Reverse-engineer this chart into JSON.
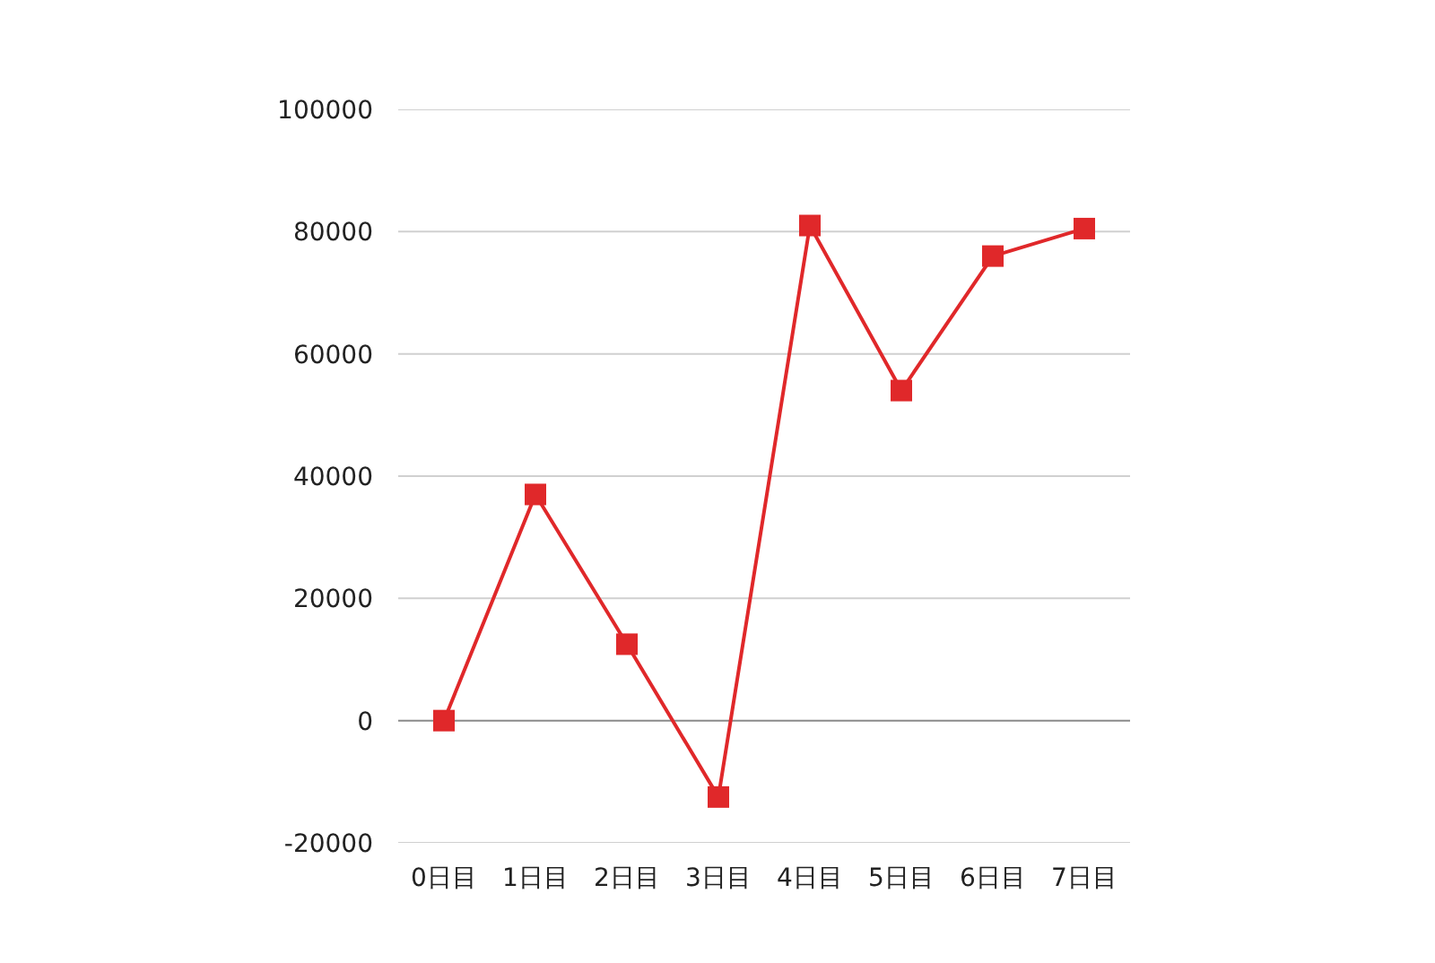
{
  "chart_data": {
    "type": "line",
    "categories": [
      "0日目",
      "1日目",
      "2日目",
      "3日目",
      "4日目",
      "5日目",
      "6日目",
      "7日目"
    ],
    "series": [
      {
        "color": "#e0282a",
        "values": [
          0,
          37000,
          12500,
          -12500,
          81000,
          54000,
          76000,
          80500
        ]
      }
    ],
    "ylim": [
      -20000,
      100000
    ],
    "yticks": [
      -20000,
      0,
      20000,
      40000,
      60000,
      80000,
      100000
    ],
    "grid": "y",
    "marker": "square",
    "line_style": "solid"
  }
}
